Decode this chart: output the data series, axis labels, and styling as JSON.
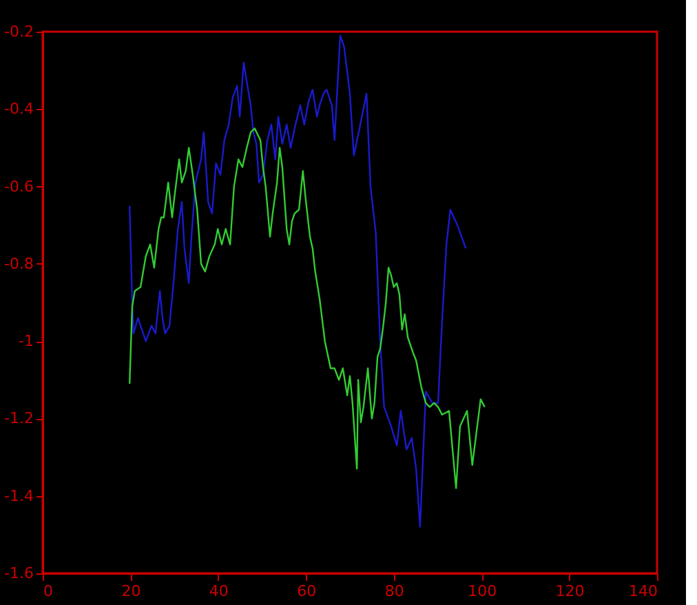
{
  "chart_data": {
    "type": "line",
    "xlim": [
      0,
      140
    ],
    "xticks": [
      0,
      20,
      40,
      60,
      80,
      100,
      120,
      140
    ],
    "ylim": [
      -1.6,
      -0.2
    ],
    "yticks": [
      -1.6,
      -1.4,
      -1.2,
      -1,
      -0.8,
      -0.6,
      -0.4,
      -0.2
    ],
    "grid": false,
    "line_style": "solid",
    "series": [
      {
        "color": "#1a1acc",
        "x": [
          19.8,
          20.4,
          20.7,
          21.7,
          22.9,
          23.5,
          24.8,
          25.7,
          26.7,
          27.3,
          27.9,
          28.9,
          29.8,
          30.8,
          31.7,
          32.3,
          33.3,
          33.9,
          34.8,
          36.1,
          36.7,
          37.7,
          38.6,
          39.5,
          40.5,
          41.4,
          42.4,
          43.3,
          44.3,
          44.9,
          45.8,
          46.8,
          47.4,
          48.0,
          48.7,
          49.3,
          50.2,
          51.2,
          52.1,
          53.0,
          53.7,
          54.6,
          55.6,
          56.5,
          57.4,
          58.7,
          59.6,
          60.6,
          61.5,
          62.5,
          63.1,
          64.0,
          64.7,
          65.9,
          66.5,
          67.8,
          68.7,
          70.0,
          70.9,
          72.2,
          73.8,
          74.7,
          75.9,
          76.9,
          77.8,
          79.4,
          80.7,
          81.6,
          82.9,
          84.1,
          85.1,
          86.0,
          87.3,
          88.8,
          90.1,
          91.0,
          92.0,
          92.9,
          94.5,
          96.4
        ],
        "values": [
          -0.65,
          -0.9,
          -0.98,
          -0.94,
          -0.98,
          -1.0,
          -0.96,
          -0.98,
          -0.87,
          -0.94,
          -0.98,
          -0.96,
          -0.85,
          -0.71,
          -0.64,
          -0.76,
          -0.85,
          -0.73,
          -0.59,
          -0.53,
          -0.46,
          -0.64,
          -0.67,
          -0.54,
          -0.57,
          -0.48,
          -0.44,
          -0.37,
          -0.34,
          -0.42,
          -0.28,
          -0.35,
          -0.39,
          -0.46,
          -0.49,
          -0.59,
          -0.57,
          -0.48,
          -0.44,
          -0.53,
          -0.42,
          -0.49,
          -0.44,
          -0.5,
          -0.45,
          -0.39,
          -0.44,
          -0.38,
          -0.35,
          -0.42,
          -0.39,
          -0.36,
          -0.35,
          -0.39,
          -0.48,
          -0.21,
          -0.24,
          -0.36,
          -0.52,
          -0.45,
          -0.36,
          -0.6,
          -0.72,
          -1.0,
          -1.17,
          -1.22,
          -1.27,
          -1.18,
          -1.28,
          -1.25,
          -1.33,
          -1.48,
          -1.13,
          -1.16,
          -1.16,
          -0.95,
          -0.75,
          -0.66,
          -0.7,
          -0.76
        ]
      },
      {
        "color": "#33cc33",
        "x": [
          19.8,
          20.4,
          21.0,
          22.3,
          23.5,
          24.5,
          25.4,
          26.4,
          27.0,
          27.6,
          28.6,
          29.5,
          30.1,
          31.1,
          31.7,
          32.6,
          33.3,
          34.2,
          35.2,
          36.1,
          37.0,
          38.0,
          39.2,
          39.9,
          40.8,
          41.7,
          42.7,
          43.6,
          44.6,
          45.5,
          46.5,
          47.4,
          48.3,
          49.6,
          50.2,
          50.8,
          51.8,
          52.4,
          53.4,
          54.0,
          54.6,
          55.6,
          56.2,
          56.8,
          57.4,
          58.4,
          59.3,
          59.9,
          60.9,
          61.5,
          62.1,
          63.1,
          64.3,
          65.6,
          66.5,
          67.5,
          68.4,
          69.4,
          70.0,
          70.6,
          71.6,
          71.9,
          72.5,
          73.1,
          74.1,
          75.0,
          75.6,
          76.3,
          76.9,
          77.5,
          78.2,
          78.8,
          79.4,
          80.0,
          80.7,
          81.3,
          81.9,
          82.5,
          83.2,
          83.8,
          84.4,
          85.1,
          86.3,
          87.3,
          88.2,
          89.2,
          90.1,
          91.0,
          92.6,
          94.2,
          95.1,
          96.7,
          97.9,
          99.8,
          100.7
        ],
        "values": [
          -1.11,
          -0.91,
          -0.87,
          -0.86,
          -0.78,
          -0.75,
          -0.81,
          -0.71,
          -0.68,
          -0.68,
          -0.59,
          -0.68,
          -0.62,
          -0.53,
          -0.59,
          -0.56,
          -0.5,
          -0.57,
          -0.66,
          -0.8,
          -0.82,
          -0.78,
          -0.75,
          -0.71,
          -0.75,
          -0.71,
          -0.75,
          -0.6,
          -0.53,
          -0.55,
          -0.5,
          -0.46,
          -0.45,
          -0.48,
          -0.55,
          -0.6,
          -0.73,
          -0.67,
          -0.59,
          -0.5,
          -0.55,
          -0.71,
          -0.75,
          -0.69,
          -0.67,
          -0.66,
          -0.56,
          -0.63,
          -0.73,
          -0.76,
          -0.82,
          -0.89,
          -1.0,
          -1.07,
          -1.07,
          -1.1,
          -1.07,
          -1.14,
          -1.09,
          -1.16,
          -1.33,
          -1.1,
          -1.21,
          -1.17,
          -1.07,
          -1.2,
          -1.16,
          -1.04,
          -1.02,
          -0.97,
          -0.9,
          -0.81,
          -0.83,
          -0.86,
          -0.85,
          -0.88,
          -0.97,
          -0.93,
          -0.99,
          -1.01,
          -1.03,
          -1.05,
          -1.12,
          -1.16,
          -1.17,
          -1.16,
          -1.17,
          -1.19,
          -1.18,
          -1.38,
          -1.22,
          -1.18,
          -1.32,
          -1.15,
          -1.17
        ]
      }
    ]
  }
}
